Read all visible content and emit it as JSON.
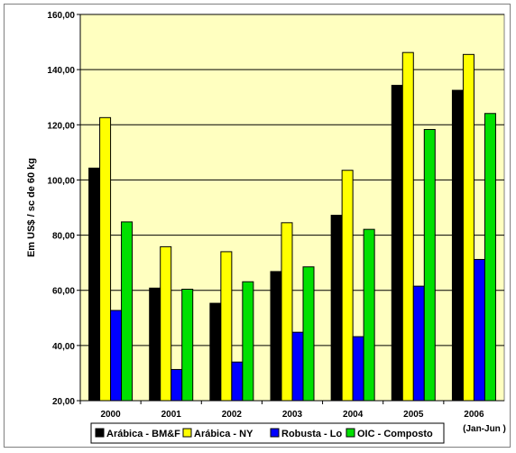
{
  "chart_data": {
    "type": "bar",
    "title": "",
    "xlabel": "",
    "ylabel": "Em US$ / sc de 60 kg",
    "ylim": [
      20,
      160
    ],
    "yticks": [
      "20,00",
      "40,00",
      "60,00",
      "80,00",
      "100,00",
      "120,00",
      "140,00",
      "160,00"
    ],
    "ytick_values": [
      20,
      40,
      60,
      80,
      100,
      120,
      140,
      160
    ],
    "categories": [
      "2000",
      "2001",
      "2002",
      "2003",
      "2004",
      "2005",
      "2006"
    ],
    "category_note": "(Jan-Jun )",
    "grid": true,
    "legend_position": "bottom",
    "plot_background": "#FFFFC0",
    "series": [
      {
        "name": "Arábica - BM&F",
        "color": "#000000",
        "values": [
          104.3,
          60.8,
          55.3,
          66.8,
          87.2,
          134.3,
          132.5
        ]
      },
      {
        "name": "Arábica - NY",
        "color": "#FFFF00",
        "values": [
          122.6,
          75.8,
          74.0,
          84.5,
          103.5,
          146.2,
          145.5
        ]
      },
      {
        "name": "Robusta - Lo",
        "color": "#0000FF",
        "values": [
          52.7,
          31.3,
          34.0,
          44.8,
          43.2,
          61.5,
          71.2
        ]
      },
      {
        "name": "OIC - Composto",
        "color": "#00E000",
        "values": [
          84.8,
          60.4,
          63.1,
          68.5,
          82.1,
          118.3,
          124.1
        ]
      }
    ]
  }
}
